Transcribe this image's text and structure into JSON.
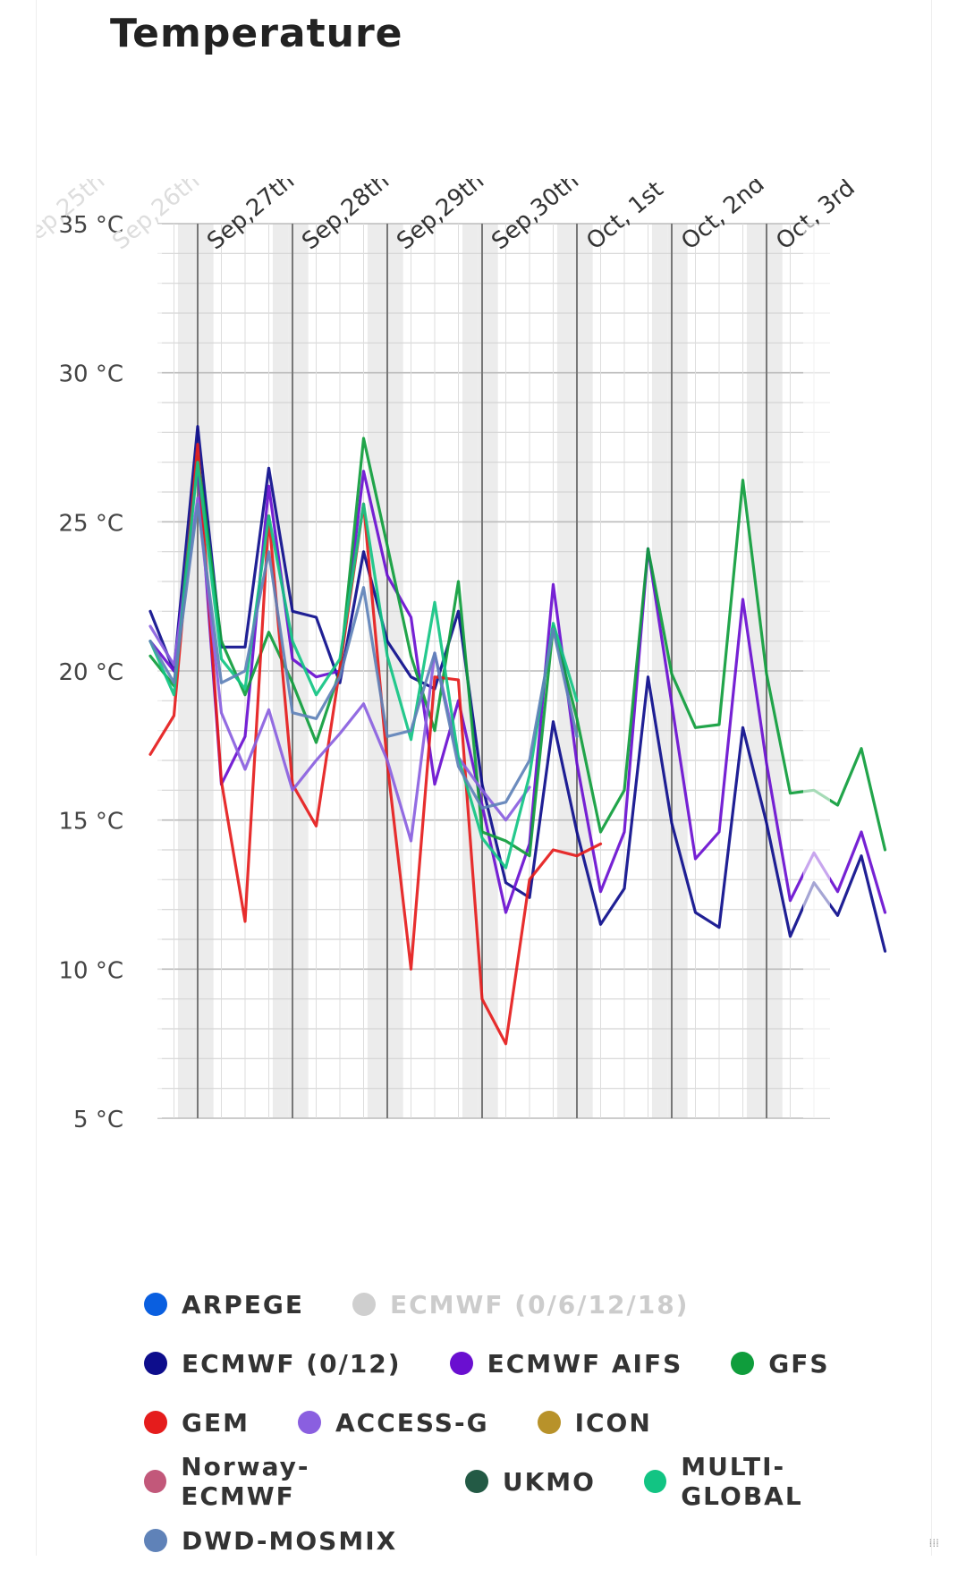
{
  "header": {
    "title": "Temperature"
  },
  "chart_data": {
    "type": "line",
    "title": "",
    "xlabel": "",
    "ylabel": "",
    "ylim": [
      5,
      35
    ],
    "yticks": [
      "5 °C",
      "10 °C",
      "15 °C",
      "20 °C",
      "25 °C",
      "30 °C",
      "35 °C"
    ],
    "day_labels": [
      "Sep,25th",
      "Sep,26th",
      "Sep,27th",
      "Sep,28th",
      "Sep,29th",
      "Sep,30th",
      "Oct, 1st",
      "Oct, 2nd",
      "Oct, 3rd"
    ],
    "x_unit": "hours since Sep 27 00:00",
    "grid": true,
    "legend_position": "bottom",
    "series": [
      {
        "name": "ARPEGE",
        "color": "#0a5fe0",
        "x": [],
        "values": []
      },
      {
        "name": "ECMWF (0/6/12/18)",
        "color": "#cfcfcf",
        "x": [],
        "values": []
      },
      {
        "name": "ECMWF (0/12)",
        "color": "#0d0d8c",
        "x": [
          -12,
          -6,
          0,
          6,
          12,
          18,
          24,
          30,
          36,
          42,
          48,
          54,
          60,
          66,
          72,
          78,
          84,
          90,
          96,
          102,
          108,
          114,
          120,
          126,
          132,
          138,
          144,
          150,
          156,
          162,
          168,
          174
        ],
        "values": [
          22.0,
          20.0,
          28.2,
          20.8,
          20.8,
          26.8,
          22.0,
          21.8,
          19.6,
          24.0,
          21.0,
          19.8,
          19.4,
          22.0,
          16.2,
          12.9,
          12.4,
          18.3,
          14.6,
          11.5,
          12.7,
          19.8,
          14.9,
          11.9,
          11.4,
          18.1,
          14.9,
          11.1,
          12.9,
          11.8,
          13.8,
          10.6
        ]
      },
      {
        "name": "ECMWF AIFS",
        "color": "#6a0fd0",
        "x": [
          -12,
          -6,
          0,
          6,
          12,
          18,
          24,
          30,
          36,
          42,
          48,
          54,
          60,
          66,
          72,
          78,
          84,
          90,
          96,
          102,
          108,
          114,
          120,
          126,
          132,
          138,
          144,
          150,
          156,
          162,
          168,
          174
        ],
        "values": [
          21.0,
          20.0,
          27.0,
          16.2,
          17.8,
          26.2,
          20.4,
          19.8,
          20.0,
          26.7,
          23.2,
          21.8,
          16.2,
          19.0,
          15.5,
          11.9,
          14.2,
          22.9,
          16.9,
          12.6,
          14.6,
          24.1,
          18.9,
          13.7,
          14.6,
          22.4,
          16.9,
          12.3,
          13.9,
          12.6,
          14.6,
          11.9
        ]
      },
      {
        "name": "GFS",
        "color": "#0f9d3c",
        "x": [
          -12,
          -6,
          0,
          6,
          12,
          18,
          24,
          30,
          36,
          42,
          48,
          54,
          60,
          66,
          72,
          78,
          84,
          90,
          96,
          102,
          108,
          114,
          120,
          126,
          132,
          138,
          144,
          150,
          156,
          162,
          168,
          174
        ],
        "values": [
          20.5,
          19.5,
          27.2,
          21.0,
          19.2,
          21.3,
          19.6,
          17.6,
          20.0,
          27.8,
          24.2,
          20.5,
          18.0,
          23.0,
          14.6,
          14.3,
          13.8,
          21.5,
          18.4,
          14.6,
          16.0,
          24.1,
          19.9,
          18.1,
          18.2,
          26.4,
          19.9,
          15.9,
          16.0,
          15.5,
          17.4,
          14.0
        ]
      },
      {
        "name": "GEM",
        "color": "#e51c1c",
        "x": [
          -12,
          -6,
          0,
          6,
          12,
          18,
          24,
          30,
          36,
          42,
          48,
          54,
          60,
          66,
          72,
          78,
          84,
          90,
          96,
          102
        ],
        "values": [
          17.2,
          18.5,
          27.6,
          16.3,
          11.6,
          25.2,
          16.2,
          14.8,
          20.1,
          25.6,
          16.9,
          10.0,
          19.8,
          19.7,
          9.0,
          7.5,
          13.0,
          14.0,
          13.8,
          14.2
        ]
      },
      {
        "name": "ACCESS-G",
        "color": "#8a5fe0",
        "x": [
          -12,
          -6,
          0,
          6,
          12,
          18,
          24,
          30,
          36,
          42,
          48,
          54,
          60,
          66,
          72,
          78,
          84
        ],
        "values": [
          21.5,
          20.2,
          25.8,
          18.6,
          16.7,
          18.7,
          16.0,
          17.0,
          17.9,
          18.9,
          17.0,
          14.3,
          20.6,
          17.1,
          16.0,
          15.0,
          16.1
        ]
      },
      {
        "name": "ICON",
        "color": "#b8922a",
        "x": [],
        "values": []
      },
      {
        "name": "Norway-ECMWF",
        "color": "#c2587a",
        "x": [],
        "values": []
      },
      {
        "name": "UKMO",
        "color": "#235a45",
        "x": [],
        "values": []
      },
      {
        "name": "MULTI-GLOBAL",
        "color": "#12c483",
        "x": [
          -12,
          -6,
          0,
          6,
          12,
          18,
          24,
          30,
          36,
          42,
          48,
          54,
          60,
          66,
          72,
          78,
          84,
          90,
          96
        ],
        "values": [
          21.0,
          19.2,
          27.0,
          20.4,
          19.4,
          25.2,
          21.0,
          19.2,
          20.4,
          25.6,
          20.5,
          17.7,
          22.3,
          17.1,
          14.4,
          13.4,
          16.5,
          21.6,
          19.0
        ]
      },
      {
        "name": "DWD-MOSMIX",
        "color": "#5f82b8",
        "x": [
          -12,
          -6,
          0,
          6,
          12,
          18,
          24,
          30,
          36,
          42,
          48,
          54,
          60,
          66,
          72,
          78,
          84,
          90,
          96
        ],
        "values": [
          21.0,
          19.6,
          25.6,
          19.6,
          20.0,
          24.0,
          18.6,
          18.4,
          19.8,
          22.8,
          17.8,
          18.0,
          20.6,
          16.8,
          15.4,
          15.6,
          17.0,
          21.4,
          17.8
        ]
      }
    ]
  },
  "legend": {
    "rows": [
      [
        {
          "label": "ARPEGE",
          "color": "#0a5fe0",
          "muted": false
        },
        {
          "label": "ECMWF (0/6/12/18)",
          "color": "#cfcfcf",
          "muted": true
        }
      ],
      [
        {
          "label": "ECMWF (0/12)",
          "color": "#0d0d8c",
          "muted": false
        },
        {
          "label": "ECMWF AIFS",
          "color": "#6a0fd0",
          "muted": false
        },
        {
          "label": "GFS",
          "color": "#0f9d3c",
          "muted": false
        }
      ],
      [
        {
          "label": "GEM",
          "color": "#e51c1c",
          "muted": false
        },
        {
          "label": "ACCESS-G",
          "color": "#8a5fe0",
          "muted": false
        },
        {
          "label": "ICON",
          "color": "#b8922a",
          "muted": false
        }
      ],
      [
        {
          "label": "Norway-ECMWF",
          "color": "#c2587a",
          "muted": false
        },
        {
          "label": "UKMO",
          "color": "#235a45",
          "muted": false
        },
        {
          "label": "MULTI-GLOBAL",
          "color": "#12c483",
          "muted": false
        }
      ],
      [
        {
          "label": "DWD-MOSMIX",
          "color": "#5f82b8",
          "muted": false
        }
      ]
    ]
  }
}
